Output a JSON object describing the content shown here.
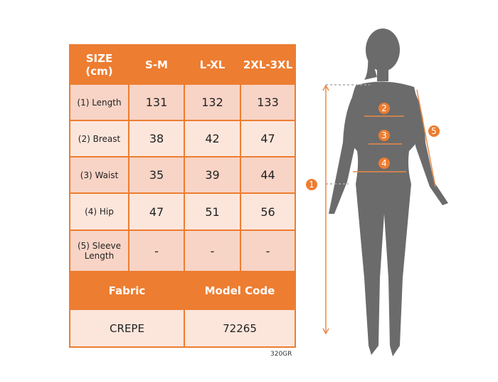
{
  "table": {
    "header": [
      "SIZE\n(cm)",
      "S-M",
      "L-XL",
      "2XL-3XL"
    ],
    "header_line1": "SIZE",
    "header_line2": "(cm)",
    "rows": [
      {
        "label": "(1) Length",
        "values": [
          "131",
          "132",
          "133"
        ]
      },
      {
        "label": "(2) Breast",
        "values": [
          "38",
          "42",
          "47"
        ]
      },
      {
        "label": "(3) Waist",
        "values": [
          "35",
          "39",
          "44"
        ]
      },
      {
        "label": "(4) Hip",
        "values": [
          "47",
          "51",
          "56"
        ]
      },
      {
        "label1": "(5) Sleeve",
        "label2": "Length",
        "values": [
          "-",
          "-",
          "-"
        ]
      }
    ],
    "fabric_header": "Fabric",
    "model_code_header": "Model Code",
    "fabric": "CREPE",
    "model_code": "72265"
  },
  "weight_code": "320GR",
  "figure": {
    "markers": [
      "1",
      "2",
      "3",
      "4",
      "5"
    ],
    "accent": "#ed7d31",
    "silhouette": "#6b6b6b"
  }
}
